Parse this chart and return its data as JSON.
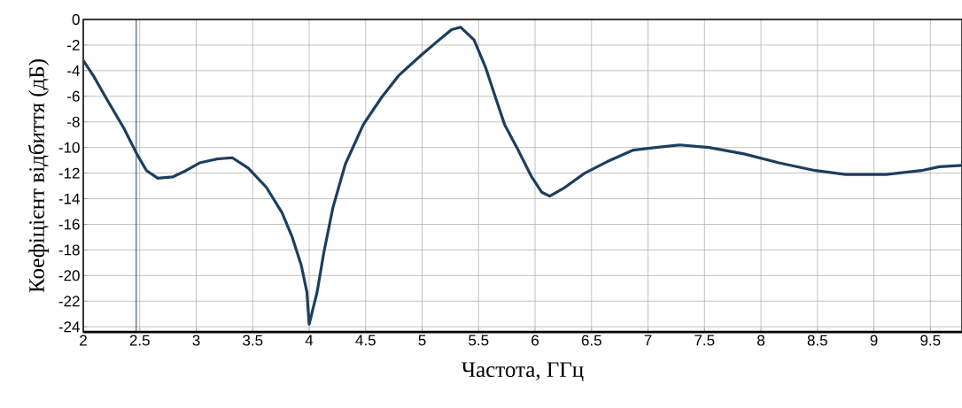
{
  "chart_data": {
    "type": "line",
    "xlabel": "Частота, ГГц",
    "ylabel": "Коефіцієнт відбиття (дБ)",
    "x": [
      2.0,
      2.09,
      2.2,
      2.36,
      2.48,
      2.56,
      2.66,
      2.79,
      2.91,
      3.03,
      3.18,
      3.32,
      3.46,
      3.62,
      3.76,
      3.85,
      3.93,
      3.98,
      4.0,
      4.07,
      4.13,
      4.21,
      4.32,
      4.48,
      4.64,
      4.79,
      4.99,
      5.15,
      5.26,
      5.34,
      5.46,
      5.56,
      5.65,
      5.73,
      5.85,
      5.97,
      6.06,
      6.13,
      6.25,
      6.44,
      6.64,
      6.87,
      7.07,
      7.28,
      7.54,
      7.85,
      8.16,
      8.48,
      8.75,
      9.11,
      9.42,
      9.58,
      9.78
    ],
    "series": [
      {
        "color": "#1c3f5e",
        "values": [
          -3.2,
          -4.4,
          -6.1,
          -8.5,
          -10.6,
          -11.8,
          -12.4,
          -12.3,
          -11.8,
          -11.2,
          -10.9,
          -10.8,
          -11.6,
          -13.1,
          -15.1,
          -17.0,
          -19.2,
          -21.3,
          -23.8,
          -21.3,
          -18.2,
          -14.7,
          -11.3,
          -8.2,
          -6.1,
          -4.4,
          -2.8,
          -1.6,
          -0.8,
          -0.6,
          -1.6,
          -3.7,
          -6.1,
          -8.2,
          -10.2,
          -12.3,
          -13.5,
          -13.8,
          -13.2,
          -12.0,
          -11.1,
          -10.2,
          -10.0,
          -9.8,
          -10.0,
          -10.5,
          -11.2,
          -11.8,
          -12.1,
          -12.1,
          -11.8,
          -11.5,
          -11.4
        ]
      }
    ],
    "xlim": [
      2,
      9.78
    ],
    "ylim": [
      -24.4,
      0
    ],
    "xticks": [
      2,
      2.5,
      3,
      3.5,
      4,
      4.5,
      5,
      5.5,
      6,
      6.5,
      7,
      7.5,
      8,
      8.5,
      9,
      9.5
    ],
    "yticks": [
      0,
      -2,
      -4,
      -6,
      -8,
      -10,
      -12,
      -14,
      -16,
      -18,
      -20,
      -22,
      -24
    ],
    "ref_lines": [
      {
        "axis": "x",
        "value": 2.47,
        "color": "#1c3f5e"
      }
    ],
    "grid": true,
    "line_style": "solid",
    "marker": "none"
  }
}
